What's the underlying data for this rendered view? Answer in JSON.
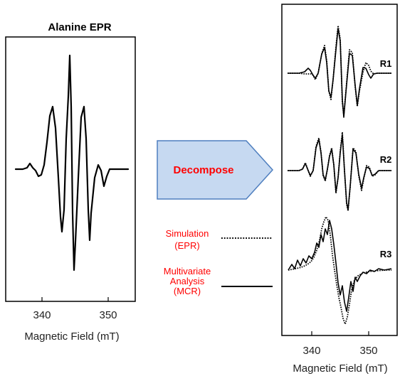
{
  "left_panel": {
    "title": "Alanine EPR",
    "x_axis_label": "Magnetic Field (mT)",
    "x_ticks": [
      "340",
      "350"
    ]
  },
  "arrow": {
    "label": "Decompose",
    "fill_color": "#c6d9f1",
    "stroke_color": "#4f7fbf",
    "label_color": "#ff0000"
  },
  "right_panel": {
    "x_axis_label": "Magnetic Field (mT)",
    "x_ticks": [
      "340",
      "350"
    ],
    "components": [
      "R1",
      "R2",
      "R3"
    ]
  },
  "legend": {
    "simulation": {
      "line1": "Simulation",
      "line2": "(EPR)",
      "style": "dotted"
    },
    "mcr": {
      "line1": "Multivariate",
      "line2": "Analysis",
      "line3": "(MCR)",
      "style": "solid"
    },
    "text_color": "#ff0000"
  }
}
